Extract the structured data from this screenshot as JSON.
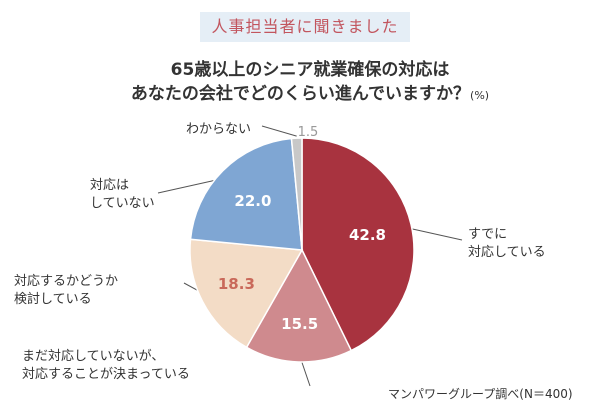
{
  "banner": "人事担当者に聞きました",
  "title_line1": "65歳以上のシニア就業確保の対応は",
  "title_line2": "あなたの会社でどのくらい進んでいますか？",
  "title_unit": "(%)",
  "credit": "マンパワーグループ調べ(N＝400)",
  "chart_data": {
    "type": "pie",
    "title": "65歳以上のシニア就業確保の対応は あなたの会社でどのくらい進んでいますか？",
    "unit": "%",
    "slices": [
      {
        "label": "すでに対応している",
        "label_lines": [
          "すでに",
          "対応している"
        ],
        "value": 42.8,
        "display": "42.8",
        "color": "#a8333f",
        "text_color": "#ffffff"
      },
      {
        "label": "まだ対応していないが、対応することが決まっている",
        "label_lines": [
          "まだ対応していないが、",
          "対応することが決まっている"
        ],
        "value": 15.5,
        "display": "15.5",
        "color": "#cf8a8e",
        "text_color": "#ffffff"
      },
      {
        "label": "対応するかどうか検討している",
        "label_lines": [
          "対応するかどうか",
          "検討している"
        ],
        "value": 18.3,
        "display": "18.3",
        "color": "#f3dcc6",
        "text_color": "#c9695a"
      },
      {
        "label": "対応はしていない",
        "label_lines": [
          "対応は",
          "していない"
        ],
        "value": 22.0,
        "display": "22.0",
        "color": "#7fa6d3",
        "text_color": "#ffffff"
      },
      {
        "label": "わからない",
        "label_lines": [
          "わからない"
        ],
        "value": 1.5,
        "display": "1.5",
        "color": "#c8c8c8",
        "text_color": "#999999"
      }
    ]
  }
}
